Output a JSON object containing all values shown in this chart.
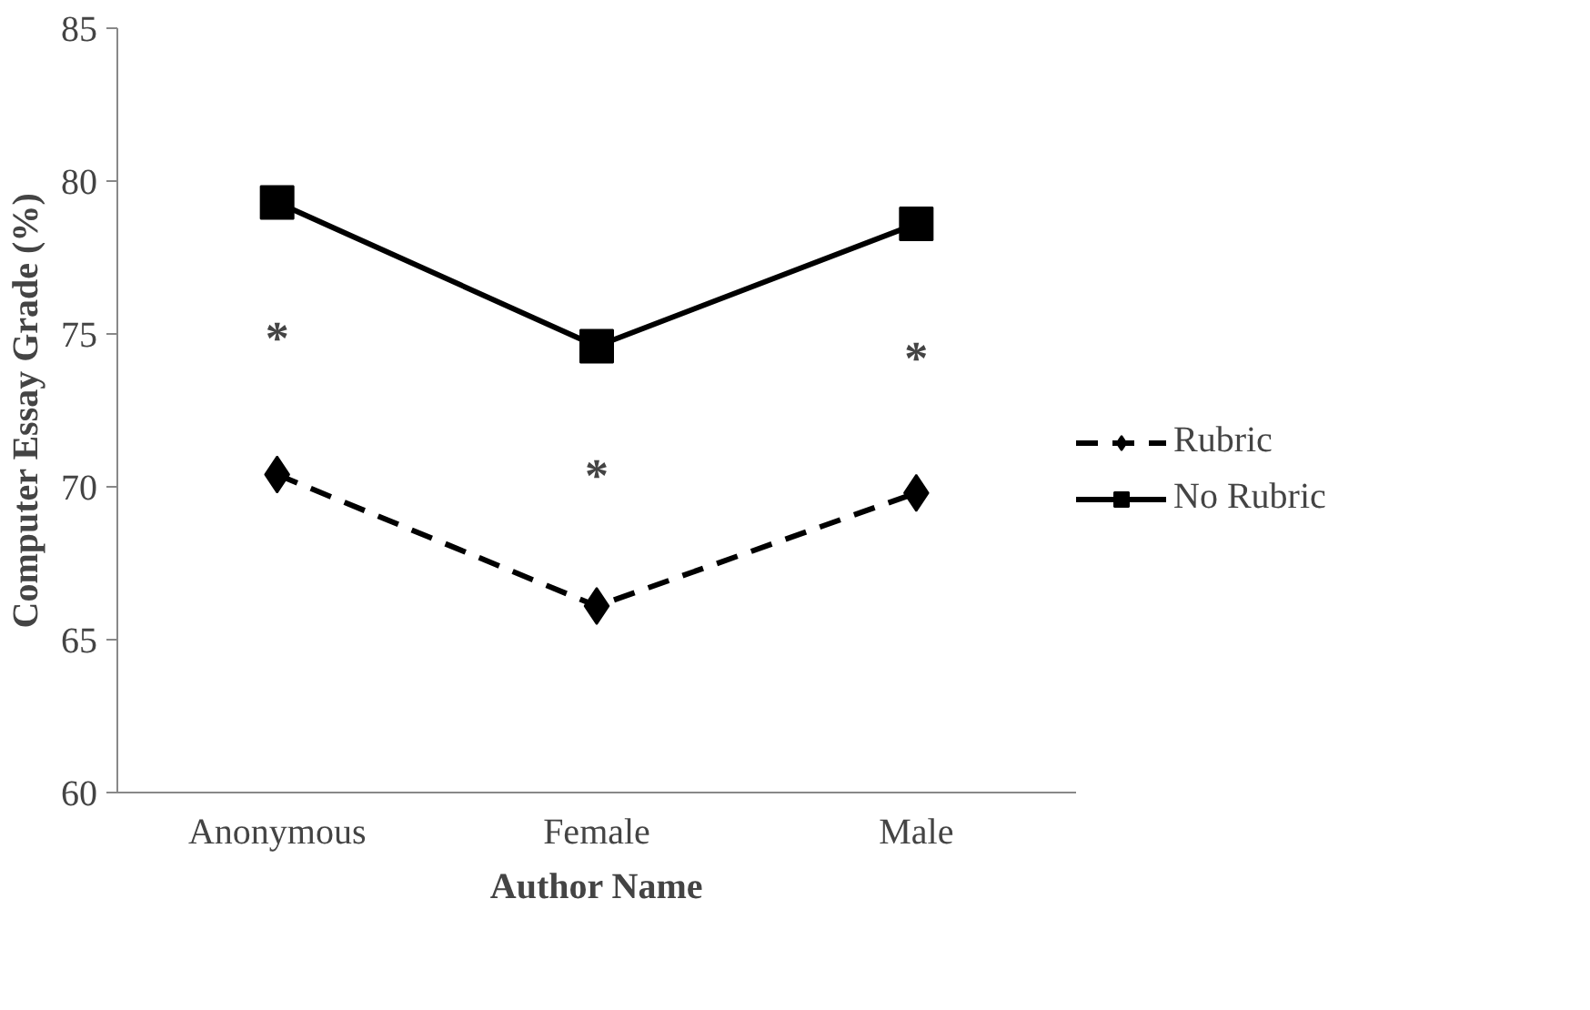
{
  "chart_data": {
    "type": "line",
    "xlabel": "Author Name",
    "ylabel": "Computer Essay Grade (%)",
    "categories": [
      "Anonymous",
      "Female",
      "Male"
    ],
    "ylim": [
      60,
      85
    ],
    "yticks": [
      60,
      65,
      70,
      75,
      80,
      85
    ],
    "grid": false,
    "legend": "right",
    "series": [
      {
        "name": "Rubric",
        "color": "#000000",
        "values": [
          70.4,
          66.1,
          69.8
        ],
        "marker": "diamond",
        "line_style": "dashed"
      },
      {
        "name": "No Rubric",
        "color": "#000000",
        "values": [
          79.3,
          74.6,
          78.6
        ],
        "marker": "square",
        "line_style": "solid"
      }
    ],
    "annotations": [
      "*",
      "*",
      "*"
    ]
  }
}
